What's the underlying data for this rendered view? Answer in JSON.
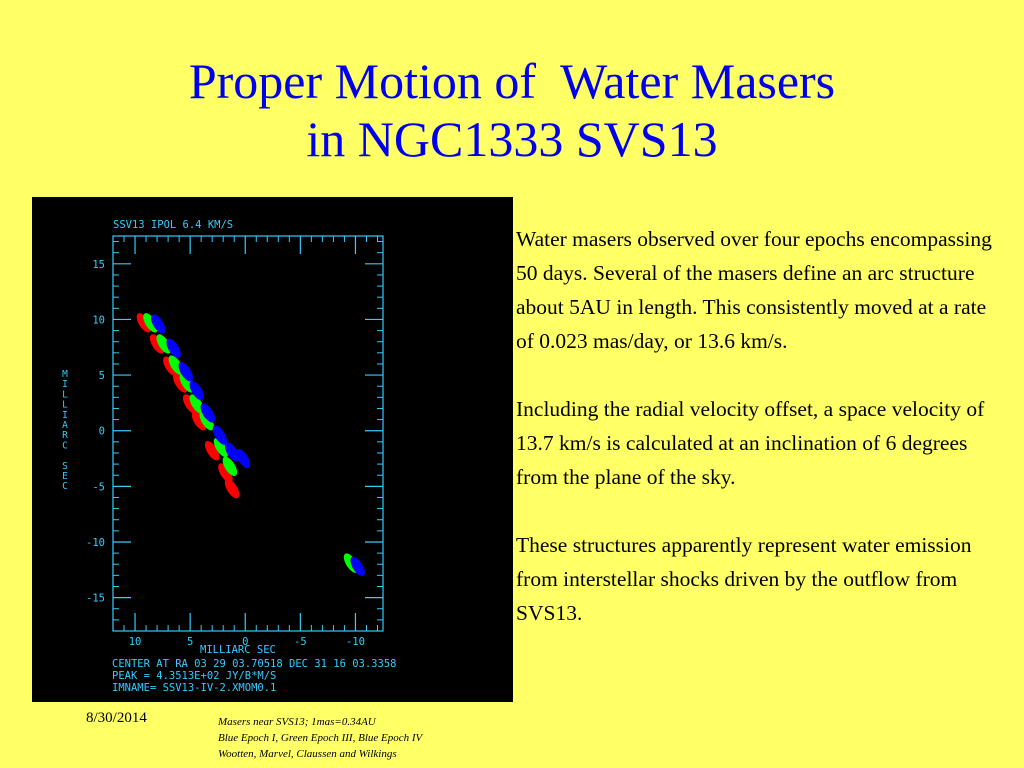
{
  "slide": {
    "title_line1": "Proper Motion of  Water Masers",
    "title_line2": "in NGC1333 SVS13",
    "paragraphs": [
      "Water masers observed over four epochs encompassing 50 days.  Several of the masers define an arc structure about 5AU in length.  This consistently moved at a rate of 0.023 mas/day, or 13.6 km/s.",
      "Including the radial velocity offset, a space velocity of 13.7 km/s is calculated at an inclination of 6 degrees from the plane of the sky.",
      "These structures apparently represent water emission from interstellar shocks driven by the outflow from SVS13."
    ],
    "footer_date": "8/30/2014",
    "footer_notes": [
      "Masers near SVS13; 1mas=0.34AU",
      "Blue Epoch I, Green Epoch III, Blue Epoch IV",
      "Wootten, Marvel, Claussen and Wilkings"
    ]
  },
  "plot": {
    "header": "SSV13 IPOL  6.4 KM/S",
    "x_axis_label": "MILLIARC SEC",
    "y_axis_label": "MILLIARC SEC",
    "x_ticks": [
      "10",
      "5",
      "0",
      "-5",
      "-10"
    ],
    "y_ticks": [
      "15",
      "10",
      "5",
      "0",
      "-5",
      "-10",
      "-15"
    ],
    "info_lines": [
      "CENTER AT RA 03 29 03.70518  DEC 31 16 03.3358",
      "PEAK =  4.3513E+02 JY/B*M/S",
      "IMNAME= SSV13-IV-2.XMOM0.1"
    ],
    "colors": {
      "frame": "#33CCFF",
      "background": "#000000",
      "epoch_red": "#FF0000",
      "epoch_green": "#00FF00",
      "epoch_blue": "#0000FF"
    },
    "xlim": [
      12,
      -12.5
    ],
    "ylim": [
      -18,
      17.5
    ]
  },
  "chart_data": {
    "type": "scatter",
    "title": "SSV13 IPOL  6.4 KM/S",
    "xlabel": "MILLIARC SEC",
    "ylabel": "MILLIARC SEC",
    "xlim": [
      12,
      -12.5
    ],
    "ylim": [
      -18,
      17.5
    ],
    "series": [
      {
        "color": "#FF0000",
        "x": [
          9.2,
          8.0,
          6.8,
          5.9,
          5.0,
          4.2,
          3.0,
          1.8,
          1.2
        ],
        "y": [
          9.7,
          7.8,
          5.8,
          4.3,
          2.4,
          0.9,
          -1.8,
          -3.8,
          -5.2
        ]
      },
      {
        "color": "#00FF00",
        "x": [
          8.6,
          7.4,
          6.3,
          5.3,
          4.4,
          3.5,
          2.2,
          1.4,
          -9.6
        ],
        "y": [
          9.7,
          7.8,
          5.9,
          4.3,
          2.4,
          0.9,
          -1.5,
          -3.2,
          -11.9
        ]
      },
      {
        "color": "#0000FF",
        "x": [
          7.9,
          6.5,
          5.4,
          4.4,
          3.4,
          2.3,
          1.2,
          0.2,
          -10.2
        ],
        "y": [
          9.6,
          7.4,
          5.3,
          3.6,
          1.6,
          -0.4,
          -1.9,
          -2.5,
          -12.2
        ]
      }
    ]
  }
}
